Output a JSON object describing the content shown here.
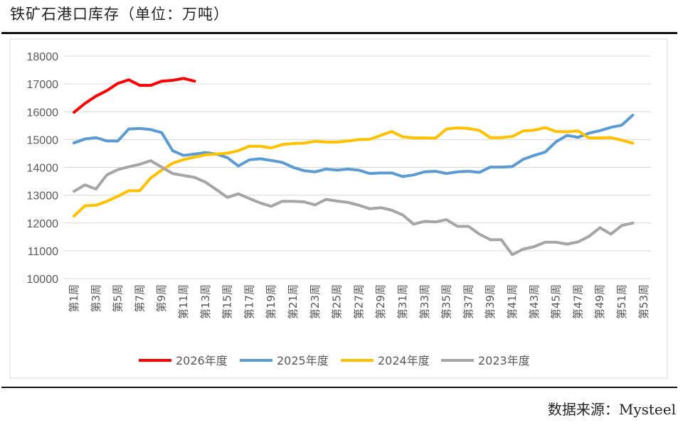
{
  "title": "铁矿石港口库存（单位：万吨）",
  "source": "数据来源：Mysteel",
  "chart_data": {
    "type": "line",
    "title": "",
    "ylim": [
      10000,
      18000
    ],
    "yticks": [
      10000,
      11000,
      12000,
      13000,
      14000,
      15000,
      16000,
      17000,
      18000
    ],
    "grid": true,
    "legend_position": "bottom",
    "xlabels": [
      "第1周",
      "第3周",
      "第5周",
      "第7周",
      "第9周",
      "第11周",
      "第13周",
      "第15周",
      "第17周",
      "第19周",
      "第21周",
      "第23周",
      "第25周",
      "第27周",
      "第29周",
      "第31周",
      "第33周",
      "第35周",
      "第37周",
      "第39周",
      "第41周",
      "第43周",
      "第45周",
      "第47周",
      "第49周",
      "第51周",
      "第53周"
    ],
    "x_weeks": 53,
    "series": [
      {
        "name": "2026年度",
        "color": "#FF0000",
        "values": [
          15980,
          16300,
          16560,
          16760,
          17020,
          17150,
          16950,
          16950,
          17100,
          17130,
          17200,
          17100
        ]
      },
      {
        "name": "2025年度",
        "color": "#5B9BD5",
        "values": [
          14880,
          15020,
          15070,
          14950,
          14950,
          15380,
          15400,
          15360,
          15250,
          14600,
          14430,
          14480,
          14530,
          14480,
          14350,
          14050,
          14270,
          14310,
          14250,
          14180,
          14000,
          13880,
          13840,
          13940,
          13900,
          13940,
          13900,
          13780,
          13800,
          13800,
          13670,
          13730,
          13840,
          13860,
          13780,
          13840,
          13860,
          13820,
          14010,
          14010,
          14030,
          14290,
          14430,
          14550,
          14920,
          15150,
          15080,
          15230,
          15320,
          15440,
          15520,
          15880
        ]
      },
      {
        "name": "2024年度",
        "color": "#FFC000",
        "values": [
          12250,
          12620,
          12640,
          12780,
          12960,
          13160,
          13160,
          13620,
          13900,
          14150,
          14280,
          14370,
          14450,
          14480,
          14510,
          14600,
          14760,
          14760,
          14700,
          14820,
          14860,
          14870,
          14940,
          14910,
          14910,
          14950,
          15000,
          15010,
          15150,
          15290,
          15100,
          15060,
          15060,
          15050,
          15380,
          15420,
          15400,
          15330,
          15070,
          15070,
          15110,
          15310,
          15340,
          15430,
          15290,
          15280,
          15310,
          15060,
          15060,
          15070,
          14980,
          14870
        ]
      },
      {
        "name": "2023年度",
        "color": "#A5A5A5",
        "values": [
          13140,
          13370,
          13220,
          13730,
          13920,
          14020,
          14110,
          14240,
          14010,
          13780,
          13710,
          13640,
          13470,
          13200,
          12920,
          13050,
          12880,
          12720,
          12600,
          12780,
          12780,
          12760,
          12650,
          12850,
          12790,
          12740,
          12640,
          12510,
          12550,
          12460,
          12290,
          11960,
          12060,
          12040,
          12120,
          11880,
          11880,
          11600,
          11400,
          11400,
          10860,
          11060,
          11150,
          11310,
          11310,
          11240,
          11320,
          11520,
          11830,
          11600,
          11910,
          12000
        ]
      }
    ]
  }
}
